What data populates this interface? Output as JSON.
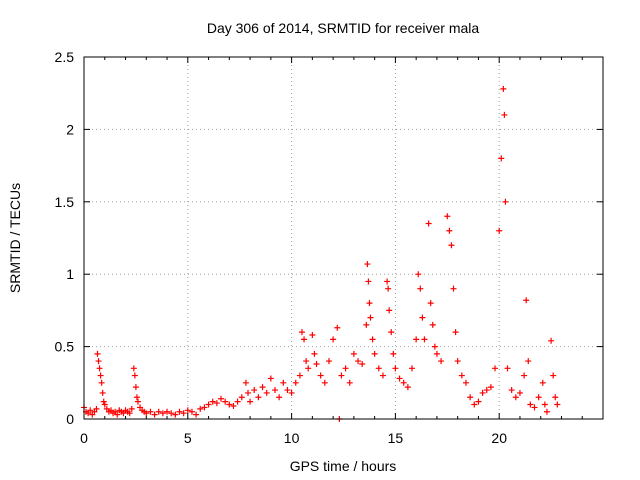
{
  "chart_data": {
    "type": "scatter",
    "title": "Day 306 of 2014, SRMTID for receiver mala",
    "xlabel": "GPS time / hours",
    "ylabel": "SRMTID / TECUs",
    "xlim": [
      0,
      25
    ],
    "ylim": [
      0,
      2.5
    ],
    "xticks": [
      0,
      5,
      10,
      15,
      20
    ],
    "yticks": [
      0,
      0.5,
      1,
      1.5,
      2,
      2.5
    ],
    "xtick_labels": [
      "0",
      "5",
      "10",
      "15",
      "20"
    ],
    "ytick_labels": [
      "0",
      "0.5",
      "1",
      "1.5",
      "2",
      "2.5"
    ],
    "grid": true,
    "marker": "+",
    "color": "#ff0000",
    "series": [
      {
        "name": "SRMTID",
        "points": [
          [
            0.0,
            0.08
          ],
          [
            0.1,
            0.05
          ],
          [
            0.2,
            0.04
          ],
          [
            0.3,
            0.06
          ],
          [
            0.4,
            0.03
          ],
          [
            0.5,
            0.05
          ],
          [
            0.6,
            0.07
          ],
          [
            0.65,
            0.45
          ],
          [
            0.7,
            0.4
          ],
          [
            0.75,
            0.35
          ],
          [
            0.8,
            0.3
          ],
          [
            0.85,
            0.25
          ],
          [
            0.9,
            0.18
          ],
          [
            0.95,
            0.12
          ],
          [
            1.0,
            0.1
          ],
          [
            1.1,
            0.07
          ],
          [
            1.2,
            0.05
          ],
          [
            1.3,
            0.06
          ],
          [
            1.4,
            0.04
          ],
          [
            1.5,
            0.05
          ],
          [
            1.6,
            0.03
          ],
          [
            1.7,
            0.06
          ],
          [
            1.8,
            0.05
          ],
          [
            1.9,
            0.04
          ],
          [
            2.0,
            0.06
          ],
          [
            2.1,
            0.05
          ],
          [
            2.2,
            0.04
          ],
          [
            2.3,
            0.07
          ],
          [
            2.4,
            0.35
          ],
          [
            2.45,
            0.3
          ],
          [
            2.5,
            0.22
          ],
          [
            2.55,
            0.15
          ],
          [
            2.6,
            0.12
          ],
          [
            2.7,
            0.08
          ],
          [
            2.8,
            0.06
          ],
          [
            2.9,
            0.05
          ],
          [
            3.0,
            0.04
          ],
          [
            3.2,
            0.05
          ],
          [
            3.4,
            0.03
          ],
          [
            3.6,
            0.05
          ],
          [
            3.8,
            0.04
          ],
          [
            4.0,
            0.05
          ],
          [
            4.2,
            0.04
          ],
          [
            4.4,
            0.03
          ],
          [
            4.6,
            0.05
          ],
          [
            4.8,
            0.04
          ],
          [
            5.0,
            0.06
          ],
          [
            5.2,
            0.05
          ],
          [
            5.4,
            0.03
          ],
          [
            5.6,
            0.07
          ],
          [
            5.8,
            0.08
          ],
          [
            6.0,
            0.1
          ],
          [
            6.2,
            0.12
          ],
          [
            6.4,
            0.11
          ],
          [
            6.6,
            0.14
          ],
          [
            6.8,
            0.12
          ],
          [
            7.0,
            0.1
          ],
          [
            7.2,
            0.09
          ],
          [
            7.4,
            0.12
          ],
          [
            7.6,
            0.15
          ],
          [
            7.8,
            0.25
          ],
          [
            7.9,
            0.18
          ],
          [
            8.0,
            0.12
          ],
          [
            8.2,
            0.2
          ],
          [
            8.4,
            0.15
          ],
          [
            8.6,
            0.22
          ],
          [
            8.8,
            0.18
          ],
          [
            9.0,
            0.28
          ],
          [
            9.2,
            0.2
          ],
          [
            9.4,
            0.15
          ],
          [
            9.6,
            0.25
          ],
          [
            9.8,
            0.2
          ],
          [
            10.0,
            0.18
          ],
          [
            10.2,
            0.25
          ],
          [
            10.4,
            0.3
          ],
          [
            10.5,
            0.6
          ],
          [
            10.6,
            0.55
          ],
          [
            10.7,
            0.4
          ],
          [
            10.8,
            0.35
          ],
          [
            11.0,
            0.58
          ],
          [
            11.1,
            0.45
          ],
          [
            11.2,
            0.38
          ],
          [
            11.4,
            0.3
          ],
          [
            11.6,
            0.25
          ],
          [
            11.8,
            0.4
          ],
          [
            12.0,
            0.55
          ],
          [
            12.2,
            0.63
          ],
          [
            12.3,
            0.0
          ],
          [
            12.4,
            0.3
          ],
          [
            12.6,
            0.35
          ],
          [
            12.8,
            0.25
          ],
          [
            13.0,
            0.45
          ],
          [
            13.2,
            0.4
          ],
          [
            13.4,
            0.38
          ],
          [
            13.6,
            0.65
          ],
          [
            13.65,
            1.07
          ],
          [
            13.7,
            0.95
          ],
          [
            13.75,
            0.8
          ],
          [
            13.8,
            0.7
          ],
          [
            13.9,
            0.55
          ],
          [
            14.0,
            0.45
          ],
          [
            14.2,
            0.35
          ],
          [
            14.4,
            0.3
          ],
          [
            14.6,
            0.95
          ],
          [
            14.65,
            0.9
          ],
          [
            14.7,
            0.75
          ],
          [
            14.8,
            0.6
          ],
          [
            14.9,
            0.45
          ],
          [
            15.0,
            0.35
          ],
          [
            15.2,
            0.28
          ],
          [
            15.4,
            0.25
          ],
          [
            15.6,
            0.22
          ],
          [
            15.8,
            0.35
          ],
          [
            16.0,
            0.55
          ],
          [
            16.1,
            1.0
          ],
          [
            16.2,
            0.9
          ],
          [
            16.3,
            0.7
          ],
          [
            16.4,
            0.55
          ],
          [
            16.6,
            1.35
          ],
          [
            16.7,
            0.8
          ],
          [
            16.8,
            0.65
          ],
          [
            16.9,
            0.5
          ],
          [
            17.0,
            0.45
          ],
          [
            17.2,
            0.4
          ],
          [
            17.5,
            1.4
          ],
          [
            17.6,
            1.3
          ],
          [
            17.7,
            1.2
          ],
          [
            17.8,
            0.9
          ],
          [
            17.9,
            0.6
          ],
          [
            18.0,
            0.4
          ],
          [
            18.2,
            0.3
          ],
          [
            18.4,
            0.25
          ],
          [
            18.6,
            0.15
          ],
          [
            18.8,
            0.1
          ],
          [
            19.0,
            0.12
          ],
          [
            19.2,
            0.18
          ],
          [
            19.4,
            0.2
          ],
          [
            19.6,
            0.22
          ],
          [
            19.8,
            0.35
          ],
          [
            20.0,
            1.3
          ],
          [
            20.1,
            1.8
          ],
          [
            20.2,
            2.28
          ],
          [
            20.25,
            2.1
          ],
          [
            20.3,
            1.5
          ],
          [
            20.4,
            0.35
          ],
          [
            20.6,
            0.2
          ],
          [
            20.8,
            0.15
          ],
          [
            21.0,
            0.18
          ],
          [
            21.2,
            0.3
          ],
          [
            21.3,
            0.82
          ],
          [
            21.4,
            0.4
          ],
          [
            21.5,
            0.1
          ],
          [
            21.7,
            0.08
          ],
          [
            21.9,
            0.15
          ],
          [
            22.1,
            0.25
          ],
          [
            22.2,
            0.1
          ],
          [
            22.3,
            0.05
          ],
          [
            22.5,
            0.54
          ],
          [
            22.6,
            0.3
          ],
          [
            22.7,
            0.15
          ],
          [
            22.8,
            0.1
          ]
        ]
      }
    ]
  }
}
